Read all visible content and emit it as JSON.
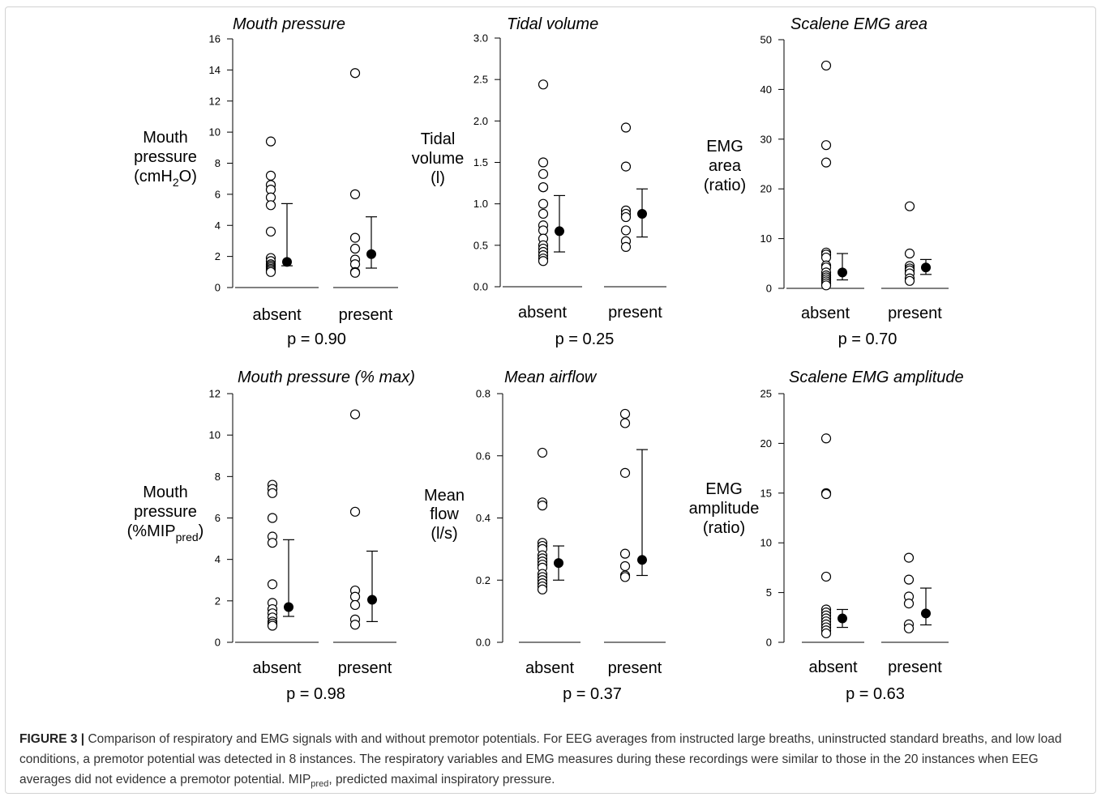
{
  "figure": {
    "label": "FIGURE 3 |",
    "caption_before": "Comparison of respiratory and EMG signals with and without premotor potentials. For EEG averages from instructed large breaths, uninstructed standard breaths, and low load conditions, a premotor potential was detected in 8 instances. The respiratory variables and EMG measures during these recordings were similar to those in the 20 instances when EEG averages did not evidence a premotor potential. MIP",
    "caption_sub": "pred",
    "caption_after": ", predicted maximal inspiratory pressure."
  },
  "chart_data": [
    {
      "type": "scatter",
      "title": "Mouth pressure",
      "ylabel_lines": [
        "Mouth",
        "pressure",
        "(cmH",
        "2",
        "O)"
      ],
      "ylim": [
        0,
        16
      ],
      "yticks": [
        "0",
        "2",
        "4",
        "6",
        "8",
        "10",
        "12",
        "14",
        "16"
      ],
      "tick_values": [
        0,
        2,
        4,
        6,
        8,
        10,
        12,
        14,
        16
      ],
      "categories": [
        "absent",
        "present"
      ],
      "points": {
        "absent": [
          9.4,
          7.2,
          6.6,
          6.3,
          5.8,
          5.3,
          3.6,
          1.9,
          1.7,
          1.5,
          1.4,
          1.3,
          1.2,
          1.1,
          1.0
        ],
        "present": [
          13.8,
          6.0,
          3.2,
          2.5,
          1.8,
          1.5,
          1.0,
          0.95
        ]
      },
      "summary": {
        "absent": {
          "median": 1.65,
          "low": 1.4,
          "high": 5.4
        },
        "present": {
          "median": 2.15,
          "low": 1.25,
          "high": 4.55
        }
      },
      "p_value": "p = 0.90"
    },
    {
      "type": "scatter",
      "title": "Tidal volume",
      "ylabel_lines": [
        "Tidal",
        "volume",
        "(l)"
      ],
      "ylim": [
        0,
        3
      ],
      "yticks": [
        "0.0",
        "0.5",
        "1.0",
        "1.5",
        "2.0",
        "2.5",
        "3.0"
      ],
      "tick_values": [
        0,
        0.5,
        1,
        1.5,
        2,
        2.5,
        3
      ],
      "categories": [
        "absent",
        "present"
      ],
      "points": {
        "absent": [
          2.44,
          1.5,
          1.36,
          1.2,
          1.2,
          1.0,
          0.88,
          0.74,
          0.68,
          0.58,
          0.5,
          0.46,
          0.42,
          0.38,
          0.34,
          0.31
        ],
        "present": [
          1.92,
          1.45,
          0.92,
          0.88,
          0.84,
          0.68,
          0.55,
          0.48
        ]
      },
      "summary": {
        "absent": {
          "median": 0.67,
          "low": 0.42,
          "high": 1.1
        },
        "present": {
          "median": 0.88,
          "low": 0.6,
          "high": 1.18
        }
      },
      "p_value": "p = 0.25"
    },
    {
      "type": "scatter",
      "title": "Scalene EMG area",
      "ylabel_lines": [
        "EMG",
        "area",
        "(ratio)"
      ],
      "ylim": [
        0,
        50
      ],
      "yticks": [
        "0",
        "10",
        "20",
        "30",
        "40",
        "50"
      ],
      "tick_values": [
        0,
        10,
        20,
        30,
        40,
        50
      ],
      "categories": [
        "absent",
        "present"
      ],
      "points": {
        "absent": [
          44.8,
          28.8,
          25.3,
          7.2,
          6.8,
          6.2,
          4.6,
          4.2,
          3.2,
          2.6,
          2.2,
          1.8,
          1.4,
          1.0,
          0.6
        ],
        "present": [
          16.5,
          7.0,
          4.5,
          4.0,
          3.6,
          3.0,
          2.0,
          1.5
        ]
      },
      "summary": {
        "absent": {
          "median": 3.2,
          "low": 1.7,
          "high": 7.0
        },
        "present": {
          "median": 4.2,
          "low": 2.8,
          "high": 5.8
        }
      },
      "p_value": "p = 0.70"
    },
    {
      "type": "scatter",
      "title": "Mouth pressure (% max)",
      "ylabel_lines": [
        "Mouth",
        "pressure",
        "(%MIP",
        "pred",
        ")"
      ],
      "ylim": [
        0,
        12
      ],
      "yticks": [
        "0",
        "2",
        "4",
        "6",
        "8",
        "10",
        "12"
      ],
      "tick_values": [
        0,
        2,
        4,
        6,
        8,
        10,
        12
      ],
      "categories": [
        "absent",
        "present"
      ],
      "points": {
        "absent": [
          7.6,
          7.4,
          7.2,
          6.0,
          5.1,
          4.8,
          2.8,
          1.9,
          1.6,
          1.4,
          1.2,
          1.0,
          0.9,
          0.8
        ],
        "present": [
          11.0,
          6.3,
          2.5,
          2.2,
          1.8,
          1.1,
          0.85
        ]
      },
      "summary": {
        "absent": {
          "median": 1.7,
          "low": 1.25,
          "high": 4.95
        },
        "present": {
          "median": 2.05,
          "low": 1.0,
          "high": 4.4
        }
      },
      "p_value": "p = 0.98"
    },
    {
      "type": "scatter",
      "title": "Mean airflow",
      "ylabel_lines": [
        "Mean",
        "flow",
        "(l/s)"
      ],
      "ylim": [
        0,
        0.8
      ],
      "yticks": [
        "0.0",
        "0.2",
        "0.4",
        "0.6",
        "0.8"
      ],
      "tick_values": [
        0,
        0.2,
        0.4,
        0.6,
        0.8
      ],
      "categories": [
        "absent",
        "present"
      ],
      "points": {
        "absent": [
          0.61,
          0.45,
          0.44,
          0.32,
          0.31,
          0.3,
          0.28,
          0.27,
          0.26,
          0.25,
          0.24,
          0.22,
          0.21,
          0.2,
          0.19,
          0.18,
          0.17
        ],
        "present": [
          0.735,
          0.705,
          0.545,
          0.285,
          0.245,
          0.215,
          0.21
        ]
      },
      "summary": {
        "absent": {
          "median": 0.255,
          "low": 0.2,
          "high": 0.31
        },
        "present": {
          "median": 0.265,
          "low": 0.215,
          "high": 0.62
        }
      },
      "p_value": "p = 0.37"
    },
    {
      "type": "scatter",
      "title": "Scalene EMG amplitude",
      "ylabel_lines": [
        "EMG",
        "amplitude",
        "(ratio)"
      ],
      "ylim": [
        0,
        25
      ],
      "yticks": [
        "0",
        "5",
        "10",
        "15",
        "20",
        "25"
      ],
      "tick_values": [
        0,
        5,
        10,
        15,
        20,
        25
      ],
      "categories": [
        "absent",
        "present"
      ],
      "points": {
        "absent": [
          20.5,
          15.0,
          14.9,
          6.6,
          3.3,
          3.0,
          2.7,
          2.4,
          2.1,
          1.8,
          1.5,
          1.2,
          0.9
        ],
        "present": [
          8.5,
          6.3,
          4.6,
          3.9,
          1.8,
          1.4
        ]
      },
      "summary": {
        "absent": {
          "median": 2.4,
          "low": 1.5,
          "high": 3.3
        },
        "present": {
          "median": 2.9,
          "low": 1.75,
          "high": 5.45
        }
      },
      "p_value": "p = 0.63"
    }
  ]
}
